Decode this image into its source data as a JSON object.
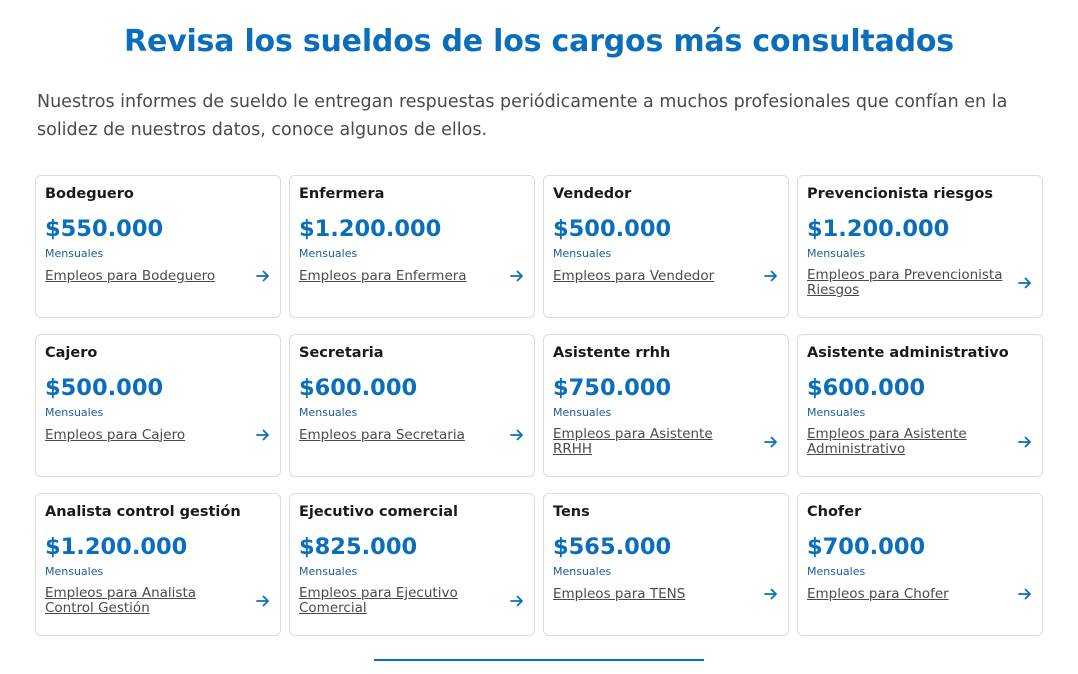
{
  "header": {
    "title": "Revisa los sueldos de los cargos más consultados",
    "subtitle": "Nuestros informes de sueldo le entregan respuestas periódicamente a muchos profesionales que confían en la solidez de nuestros datos, conoce algunos de ellos."
  },
  "cards": [
    {
      "title": "Bodeguero",
      "salary": "$550.000",
      "period": "Mensuales",
      "link": "Empleos para Bodeguero"
    },
    {
      "title": "Enfermera",
      "salary": "$1.200.000",
      "period": "Mensuales",
      "link": "Empleos para Enfermera"
    },
    {
      "title": "Vendedor",
      "salary": "$500.000",
      "period": "Mensuales",
      "link": "Empleos para Vendedor"
    },
    {
      "title": "Prevencionista riesgos",
      "salary": "$1.200.000",
      "period": "Mensuales",
      "link": "Empleos para Prevencionista Riesgos"
    },
    {
      "title": "Cajero",
      "salary": "$500.000",
      "period": "Mensuales",
      "link": "Empleos para Cajero"
    },
    {
      "title": "Secretaria",
      "salary": "$600.000",
      "period": "Mensuales",
      "link": "Empleos para Secretaria"
    },
    {
      "title": "Asistente rrhh",
      "salary": "$750.000",
      "period": "Mensuales",
      "link": "Empleos para Asistente RRHH"
    },
    {
      "title": "Asistente administrativo",
      "salary": "$600.000",
      "period": "Mensuales",
      "link": "Empleos para Asistente Administrativo"
    },
    {
      "title": "Analista control gestión",
      "salary": "$1.200.000",
      "period": "Mensuales",
      "link": "Empleos para Analista Control Gestión"
    },
    {
      "title": "Ejecutivo comercial",
      "salary": "$825.000",
      "period": "Mensuales",
      "link": "Empleos para Ejecutivo Comercial"
    },
    {
      "title": "Tens",
      "salary": "$565.000",
      "period": "Mensuales",
      "link": "Empleos para TENS"
    },
    {
      "title": "Chofer",
      "salary": "$700.000",
      "period": "Mensuales",
      "link": "Empleos para Chofer"
    }
  ],
  "icons": {
    "link_arrow": "arrow-right-icon"
  },
  "colors": {
    "accent": "#0a6ebd",
    "text": "#4a4a4a",
    "border": "#dcdcdc"
  }
}
